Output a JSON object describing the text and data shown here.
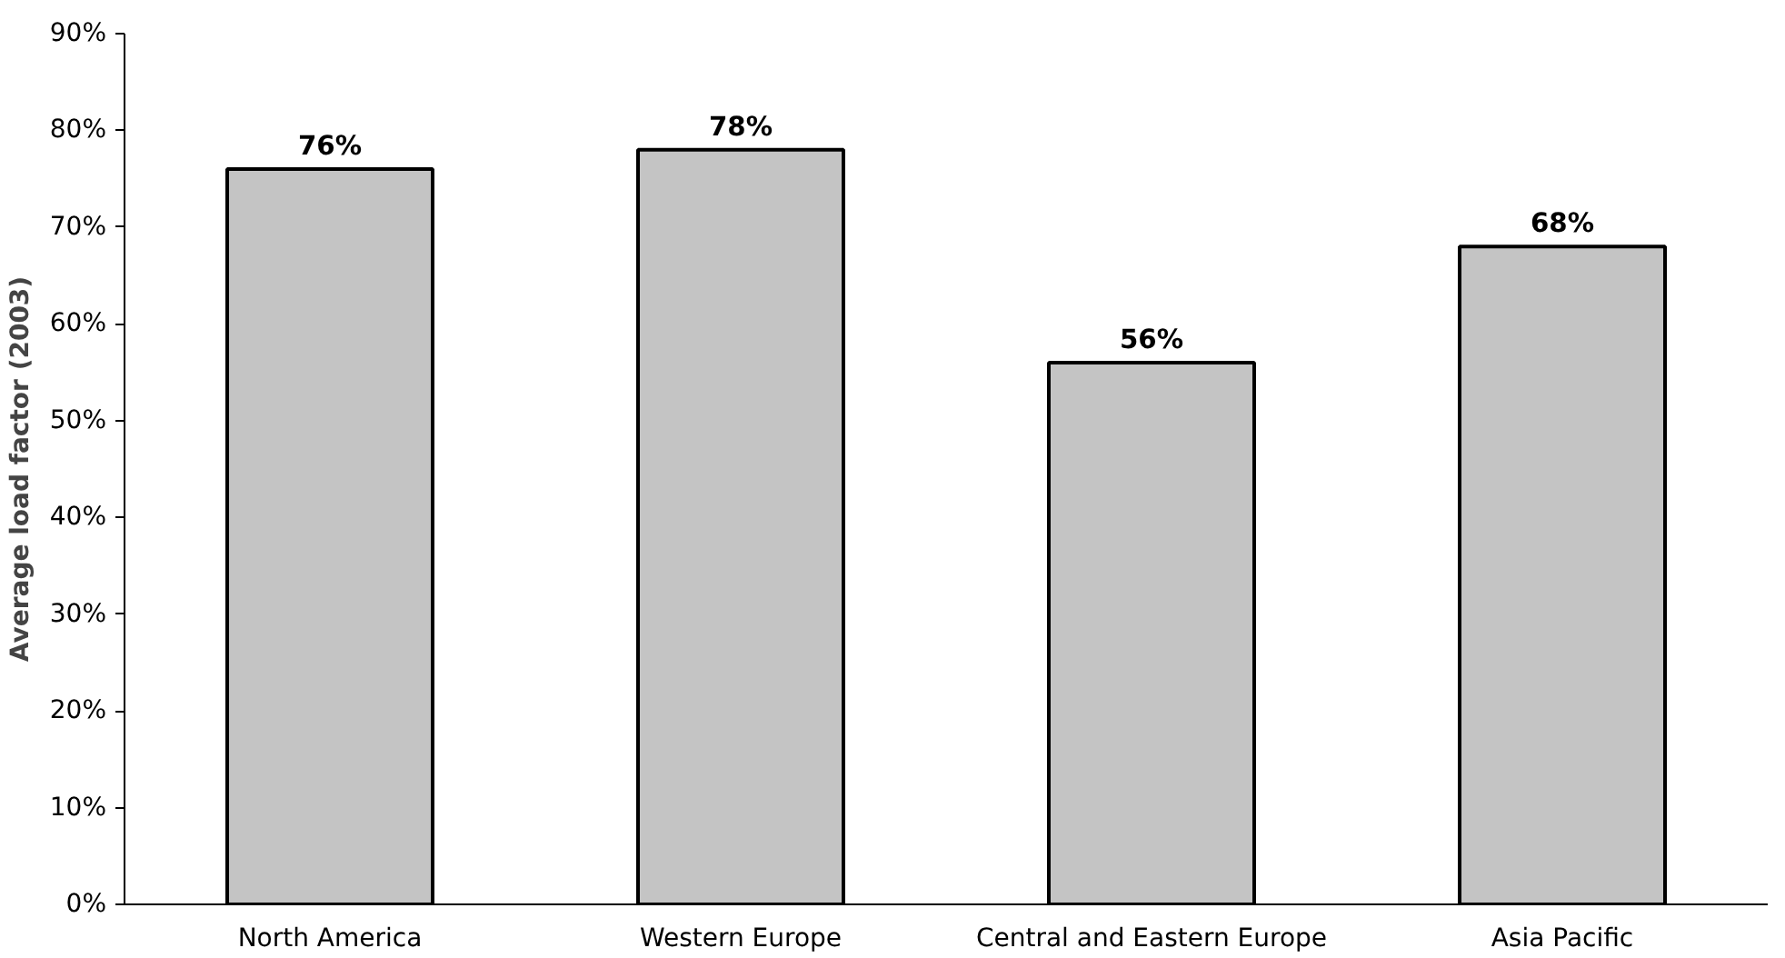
{
  "chart_data": {
    "type": "bar",
    "ylabel": "Average load factor (2003)",
    "categories": [
      "North America",
      "Western Europe",
      "Central and Eastern Europe",
      "Asia Pacific"
    ],
    "values": [
      76,
      78,
      56,
      68
    ],
    "value_labels": [
      "76%",
      "78%",
      "56%",
      "68%"
    ],
    "color": "#c4c4c4",
    "ylim": [
      0,
      90
    ],
    "yticks": [
      {
        "value": 0,
        "label": "0%"
      },
      {
        "value": 10,
        "label": "10%"
      },
      {
        "value": 20,
        "label": "20%"
      },
      {
        "value": 30,
        "label": "30%"
      },
      {
        "value": 40,
        "label": "40%"
      },
      {
        "value": 50,
        "label": "50%"
      },
      {
        "value": 60,
        "label": "60%"
      },
      {
        "value": 70,
        "label": "70%"
      },
      {
        "value": 80,
        "label": "80%"
      },
      {
        "value": 90,
        "label": "90%"
      }
    ],
    "grid": false
  }
}
